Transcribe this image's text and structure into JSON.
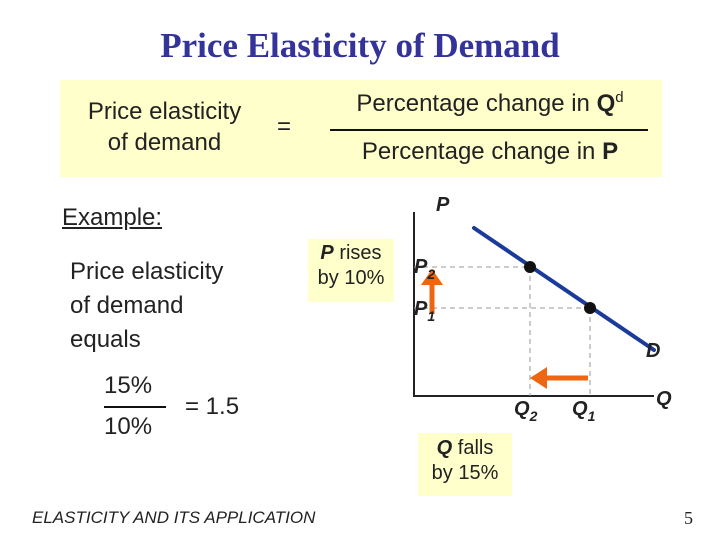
{
  "slide": {
    "title": "Price Elasticity of Demand",
    "footer": "ELASTICITY AND ITS APPLICATION",
    "page_number": "5"
  },
  "formula": {
    "label_line1": "Price elasticity",
    "label_line2": "of demand",
    "equals": "=",
    "numerator": "Percentage change in ",
    "numerator_var": "Q",
    "numerator_sup": "d",
    "denominator": "Percentage change in ",
    "denominator_var": "P"
  },
  "example": {
    "heading": "Example:",
    "line1": "Price elasticity",
    "line2": "of demand",
    "line3": "equals",
    "numerator": "15%",
    "denominator": "10%",
    "result": "= 1.5"
  },
  "graph": {
    "y_axis": "P",
    "x_axis": "Q",
    "demand_label": "D",
    "p2_base": "P",
    "p2_sub": "2",
    "p1_base": "P",
    "p1_sub": "1",
    "q2_base": "Q",
    "q2_sub": "2",
    "q1_base": "Q",
    "q1_sub": "1",
    "price_callout_var": "P",
    "price_callout_text": " rises",
    "price_callout_line2": "by 10%",
    "quantity_callout_var": "Q",
    "quantity_callout_text": " falls",
    "quantity_callout_line2": "by 15%",
    "colors": {
      "demand_line": "#1a3a9c",
      "arrow": "#ee6611",
      "guide": "#999999"
    }
  }
}
